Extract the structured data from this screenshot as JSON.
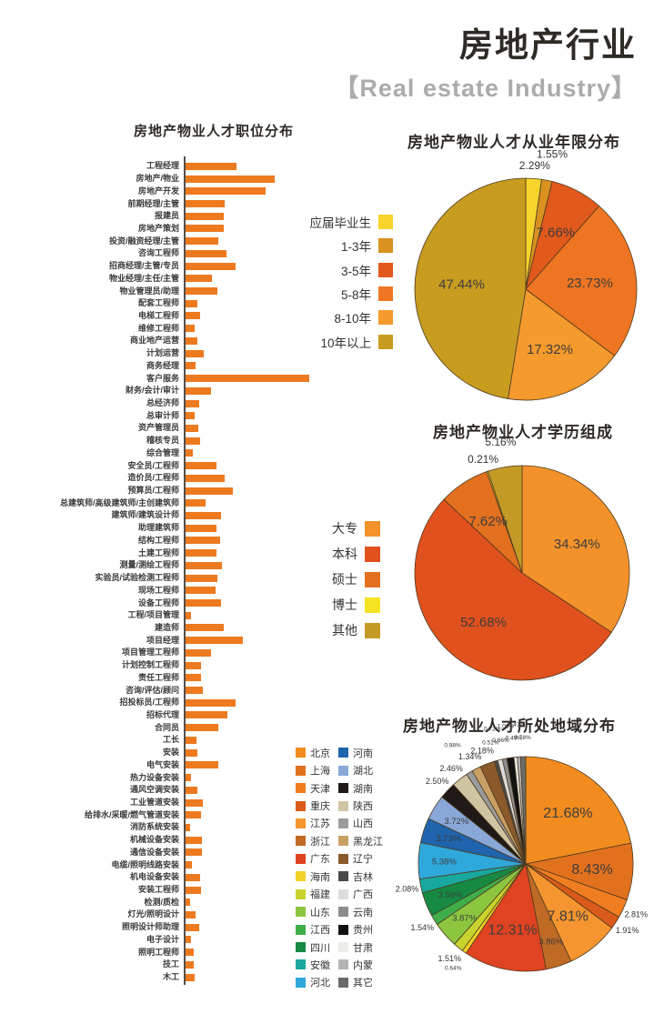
{
  "header": {
    "title": "房地产行业",
    "subtitle": "【Real estate Industry】"
  },
  "chart_data": [
    {
      "type": "bar",
      "title": "房地产物业人才职位分布",
      "orientation": "horizontal",
      "bar_color": "#ED7A1F",
      "axis_color": "#55504a",
      "value_unit": "relative-length",
      "categories": [
        "工程经理",
        "房地产/物业",
        "房地产开发",
        "前期经理/主管",
        "报建员",
        "房地产策划",
        "投资/融资经理/主管",
        "咨询工程师",
        "招商经理/主管/专员",
        "物业经理/主任/主管",
        "物业管理员/助理",
        "配套工程师",
        "电梯工程师",
        "维修工程师",
        "商业地产运营",
        "计划运营",
        "商务经理",
        "客户服务",
        "财务/会计/审计",
        "总经济师",
        "总审计师",
        "资产管理员",
        "稽核专员",
        "综合管理",
        "安全员/工程师",
        "造价员/工程师",
        "预算员/工程师",
        "总建筑师/高级建筑师/主创建筑师",
        "建筑师/建筑设计师",
        "助理建筑师",
        "结构工程师",
        "土建工程师",
        "测量/测绘工程师",
        "实验员/试验检测工程师",
        "现场工程师",
        "设备工程师",
        "工程/项目管理",
        "建造师",
        "项目经理",
        "项目管理工程师",
        "计划控制工程师",
        "责任工程师",
        "咨询/评估/顾问",
        "招投标员/工程师",
        "招标代理",
        "合同员",
        "工长",
        "安装",
        "电气安装",
        "热力设备安装",
        "通风空调安装",
        "工业管道安装",
        "给排水/采暖/燃气管道安装",
        "消防系统安装",
        "机械设备安装",
        "通信设备安装",
        "电缆/照明线路安装",
        "机电设备安装",
        "安装工程师",
        "检测/质检",
        "灯光/照明设计",
        "照明设计师助理",
        "电子设计",
        "照明工程师",
        "技工",
        "木工"
      ],
      "values": [
        56,
        98,
        88,
        43,
        42,
        42,
        36,
        45,
        55,
        29,
        35,
        13,
        16,
        10,
        13,
        20,
        11,
        136,
        28,
        15,
        10,
        14,
        16,
        8,
        34,
        43,
        52,
        22,
        39,
        34,
        38,
        34,
        40,
        35,
        33,
        39,
        6,
        42,
        63,
        28,
        17,
        17,
        19,
        55,
        46,
        36,
        12,
        13,
        36,
        6,
        13,
        19,
        17,
        5,
        18,
        18,
        7,
        16,
        17,
        5,
        11,
        15,
        6,
        9,
        9,
        10
      ]
    },
    {
      "type": "pie",
      "title": "房地产物业人才从业年限分布",
      "legend_position": "left",
      "labels": [
        "应届毕业生",
        "1-3年",
        "3-5年",
        "5-8年",
        "8-10年",
        "10年以上"
      ],
      "values": [
        2.29,
        1.55,
        7.66,
        23.73,
        17.32,
        47.44
      ],
      "displays": [
        "2.29%",
        "1.55%",
        "7.66%",
        "23.73%",
        "17.32%",
        "47.44%"
      ],
      "colors": [
        "#F6D42B",
        "#D9921F",
        "#E2591C",
        "#EE7521",
        "#F59A2C",
        "#C89C1F"
      ]
    },
    {
      "type": "pie",
      "title": "房地产物业人才学历组成",
      "legend_position": "left",
      "labels": [
        "大专",
        "本科",
        "硕士",
        "博士",
        "其他"
      ],
      "values": [
        34.34,
        52.68,
        7.62,
        0.21,
        5.16
      ],
      "displays": [
        "34.34%",
        "52.68%",
        "7.62%",
        "0.21%",
        "5.16%"
      ],
      "colors": [
        "#F3922A",
        "#E1511E",
        "#E2701E",
        "#F6E423",
        "#C49A27"
      ]
    },
    {
      "type": "pie",
      "title": "房地产物业人才所处地域分布",
      "legend_position": "left",
      "legend_columns": 2,
      "labels": [
        "北京",
        "上海",
        "天津",
        "重庆",
        "江苏",
        "浙江",
        "广东",
        "海南",
        "福建",
        "山东",
        "江西",
        "四川",
        "安徽",
        "河北",
        "河南",
        "湖北",
        "湖南",
        "陕西",
        "山西",
        "黑龙江",
        "辽宁",
        "吉林",
        "广西",
        "云南",
        "贵州",
        "甘肃",
        "内蒙",
        "其它"
      ],
      "values": [
        21.68,
        8.43,
        2.81,
        1.91,
        7.81,
        3.86,
        12.31,
        0.64,
        1.51,
        3.87,
        1.54,
        3.59,
        2.08,
        5.38,
        3.73,
        3.72,
        2.5,
        2.46,
        0.98,
        1.34,
        2.18,
        0.51,
        0.72,
        0.66,
        1.06,
        0.49,
        0.47,
        0.78
      ],
      "displays": [
        "21.68%",
        "8.43%",
        "2.81%",
        "1.91%",
        "7.81%",
        "3.86%",
        "12.31%",
        "0.64%",
        "1.51%",
        "3.87%",
        "1.54%",
        "3.59%",
        "2.08%",
        "5.38%",
        "3.73%",
        "3.72%",
        "2.50%",
        "2.46%",
        "0.98%",
        "1.34%",
        "2.18%",
        "0.51%",
        "0.72%",
        "0.66%",
        "1.06%",
        "0.49%",
        "0.47%",
        "0.78%"
      ],
      "colors": [
        "#F28C1E",
        "#E2711E",
        "#F07D1F",
        "#D95A1A",
        "#F5952F",
        "#BF6A25",
        "#E04321",
        "#F2D327",
        "#C8D42D",
        "#8CC63F",
        "#3FAE49",
        "#168A43",
        "#18A89D",
        "#2FA8DC",
        "#1F64AC",
        "#89A8D8",
        "#1F1A17",
        "#CFC5A2",
        "#9B9B9B",
        "#C9A063",
        "#8B5A2B",
        "#4A4A4A",
        "#DCDCDC",
        "#8C8C8C",
        "#111111",
        "#ECECE8",
        "#B5B5B5",
        "#6B6B6B"
      ]
    }
  ]
}
